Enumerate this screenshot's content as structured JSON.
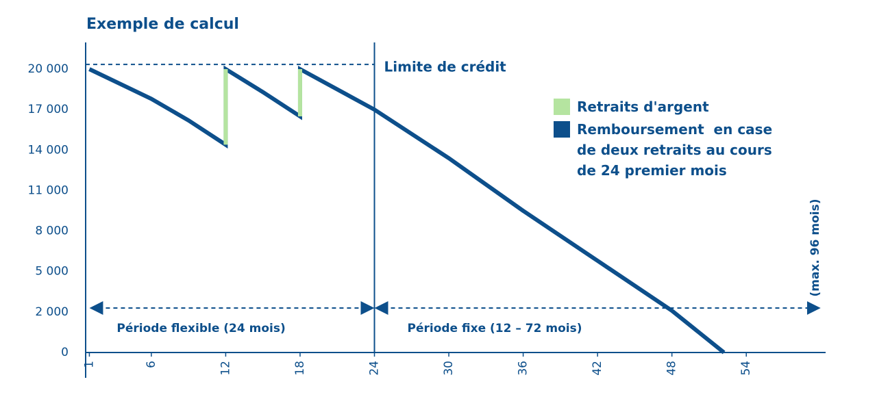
{
  "chart_data": {
    "type": "line",
    "title": "Exemple de calcul",
    "xlim": [
      0.7,
      60.4
    ],
    "xticks": [
      1,
      6,
      12,
      18,
      24,
      30,
      36,
      42,
      48,
      54
    ],
    "yticks": [
      0,
      {
        "value": 2000,
        "label": "2 000"
      },
      {
        "value": 5000,
        "label": "5 000"
      },
      {
        "value": 8000,
        "label": "8 000"
      },
      {
        "value": 11000,
        "label": "11 000"
      },
      {
        "value": 14000,
        "label": "14 000"
      },
      {
        "value": 17000,
        "label": "17 000"
      },
      {
        "value": 20000,
        "label": "20 000"
      }
    ],
    "credit_limit": {
      "label": "Limite de crédit",
      "value": 20350
    },
    "periods": [
      {
        "label": "Période flexible (24 mois)",
        "start": 1,
        "end": 24
      },
      {
        "label": "Période fixe (12 – 72 mois)",
        "start": 24,
        "end": 60
      }
    ],
    "max_note": "(max. 96 mois)",
    "series": [
      {
        "name": "Retraits d'argent",
        "color": "#b5e4a0",
        "x": [
          12,
          18
        ],
        "low": [
          14400,
          16500
        ],
        "high": [
          20000,
          20000
        ]
      },
      {
        "name": "Remboursement  en case de deux retraits au cours de 24 premier mois",
        "color": "#0d4f8b",
        "x": [
          1,
          6,
          9,
          12,
          12,
          15,
          18,
          18,
          24,
          30,
          36,
          42,
          48,
          52.2
        ],
        "values": [
          20000,
          17800,
          16200,
          14400,
          20000,
          18300,
          16500,
          20000,
          17000,
          13400,
          9500,
          5800,
          2100,
          0
        ]
      }
    ]
  }
}
